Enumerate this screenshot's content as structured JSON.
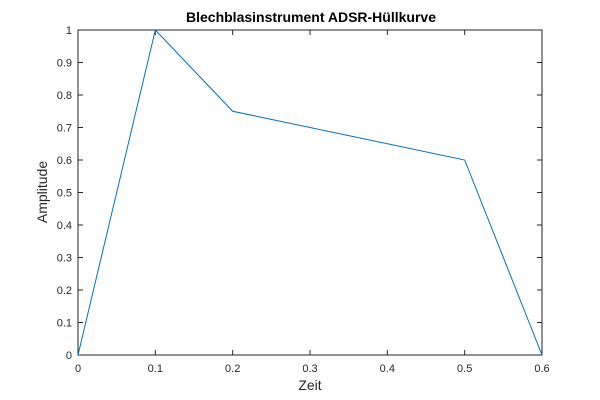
{
  "chart_data": {
    "type": "line",
    "title": "Blechblasinstrument ADSR-Hüllkurve",
    "xlabel": "Zeit",
    "ylabel": "Amplitude",
    "xlim": [
      0,
      0.6
    ],
    "ylim": [
      0,
      1
    ],
    "x_ticks": [
      "0",
      "0.1",
      "0.2",
      "0.3",
      "0.4",
      "0.5",
      "0.6"
    ],
    "y_ticks": [
      "0",
      "0.1",
      "0.2",
      "0.3",
      "0.4",
      "0.5",
      "0.6",
      "0.7",
      "0.8",
      "0.9",
      "1"
    ],
    "grid": false,
    "series": [
      {
        "x": [
          0,
          0.1,
          0.2,
          0.5,
          0.6
        ],
        "y": [
          0,
          1,
          0.75,
          0.6,
          0
        ]
      }
    ],
    "colors": {
      "line": "#0072BD",
      "axes": "#262626",
      "background": "#ffffff"
    }
  }
}
